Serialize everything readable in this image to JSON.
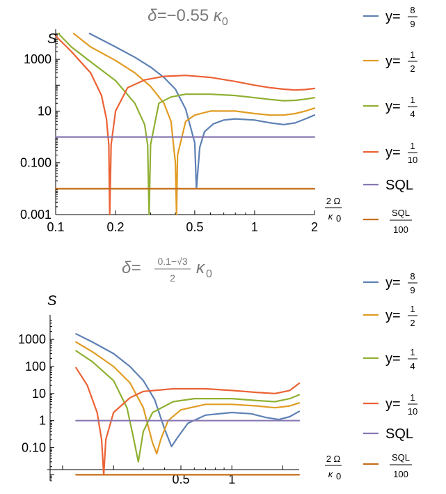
{
  "chart_data": [
    {
      "type": "line",
      "title": {
        "prefix": "δ=",
        "value": "−0.55",
        "unit": "κ",
        "sub": "0"
      },
      "ylabel": "S",
      "xlabel": {
        "num": "2 Ω",
        "den": "κ",
        "sub": "0"
      },
      "x_scale": "log",
      "y_scale": "log",
      "xlim": [
        0.1,
        2
      ],
      "ylim": [
        0.001,
        10000
      ],
      "x_ticks": [
        {
          "value": 0.1,
          "label": "0.1"
        },
        {
          "value": 0.2,
          "label": "0.2"
        },
        {
          "value": 0.5,
          "label": "0.5"
        },
        {
          "value": 1,
          "label": "1"
        },
        {
          "value": 2,
          "label": "2"
        }
      ],
      "y_ticks": [
        {
          "value": 0.001,
          "label": "0.001"
        },
        {
          "value": 0.1,
          "label": "0.100"
        },
        {
          "value": 10,
          "label": "10"
        },
        {
          "value": 1000,
          "label": "1000"
        }
      ],
      "series": [
        {
          "name": "y=8/9",
          "color": "#5E81B5",
          "points": [
            [
              0.148,
              10000
            ],
            [
              0.2,
              3000
            ],
            [
              0.25,
              1200
            ],
            [
              0.3,
              500
            ],
            [
              0.35,
              200
            ],
            [
              0.4,
              70
            ],
            [
              0.45,
              12
            ],
            [
              0.5,
              0.6
            ],
            [
              0.51,
              0.01
            ],
            [
              0.53,
              0.4
            ],
            [
              0.56,
              1.6
            ],
            [
              0.62,
              3.2
            ],
            [
              0.7,
              4.5
            ],
            [
              0.8,
              5
            ],
            [
              1.0,
              4.5
            ],
            [
              1.2,
              3.5
            ],
            [
              1.4,
              3
            ],
            [
              1.6,
              3.5
            ],
            [
              1.8,
              5
            ],
            [
              2.0,
              7
            ]
          ]
        },
        {
          "name": "y=1/2",
          "color": "#E19C24",
          "points": [
            [
              0.123,
              10000
            ],
            [
              0.15,
              3000
            ],
            [
              0.2,
              900
            ],
            [
              0.25,
              300
            ],
            [
              0.3,
              90
            ],
            [
              0.35,
              20
            ],
            [
              0.38,
              4
            ],
            [
              0.4,
              0.1
            ],
            [
              0.405,
              0.001
            ],
            [
              0.41,
              0.2
            ],
            [
              0.45,
              4
            ],
            [
              0.5,
              7
            ],
            [
              0.6,
              10
            ],
            [
              0.7,
              10
            ],
            [
              0.8,
              10
            ],
            [
              1.0,
              8
            ],
            [
              1.2,
              7
            ],
            [
              1.4,
              7
            ],
            [
              1.6,
              8
            ],
            [
              1.8,
              10
            ],
            [
              2.0,
              13
            ]
          ]
        },
        {
          "name": "y=1/4",
          "color": "#8FB032",
          "points": [
            [
              0.103,
              10000
            ],
            [
              0.12,
              3000
            ],
            [
              0.15,
              800
            ],
            [
              0.2,
              150
            ],
            [
              0.25,
              20
            ],
            [
              0.28,
              3
            ],
            [
              0.29,
              0.5
            ],
            [
              0.295,
              0.001
            ],
            [
              0.3,
              0.5
            ],
            [
              0.33,
              20
            ],
            [
              0.38,
              35
            ],
            [
              0.45,
              45
            ],
            [
              0.6,
              45
            ],
            [
              0.8,
              40
            ],
            [
              1.0,
              33
            ],
            [
              1.2,
              28
            ],
            [
              1.4,
              25
            ],
            [
              1.6,
              26
            ],
            [
              1.8,
              29
            ],
            [
              2.0,
              33
            ]
          ]
        },
        {
          "name": "y=1/10",
          "color": "#EB6235",
          "points": [
            [
              0.1,
              8000
            ],
            [
              0.12,
              2000
            ],
            [
              0.15,
              300
            ],
            [
              0.17,
              40
            ],
            [
              0.18,
              5
            ],
            [
              0.185,
              0.5
            ],
            [
              0.187,
              0.001
            ],
            [
              0.19,
              0.5
            ],
            [
              0.2,
              10
            ],
            [
              0.23,
              80
            ],
            [
              0.28,
              160
            ],
            [
              0.35,
              220
            ],
            [
              0.45,
              240
            ],
            [
              0.6,
              200
            ],
            [
              0.8,
              140
            ],
            [
              1.0,
              100
            ],
            [
              1.2,
              80
            ],
            [
              1.4,
              70
            ],
            [
              1.6,
              65
            ],
            [
              1.8,
              68
            ],
            [
              2.0,
              75
            ]
          ]
        },
        {
          "name": "SQL",
          "color": "#8778B3",
          "points": [
            [
              0.1,
              1
            ],
            [
              2.0,
              1
            ]
          ]
        },
        {
          "name": "SQL/100",
          "color": "#C56E1A",
          "points": [
            [
              0.1,
              0.01
            ],
            [
              2.0,
              0.01
            ]
          ]
        }
      ],
      "legend": [
        {
          "kind": "frac",
          "prefix": "y=",
          "num": "8",
          "den": "9",
          "color": "#5E81B5"
        },
        {
          "kind": "frac",
          "prefix": "y=",
          "num": "1",
          "den": "2",
          "color": "#E19C24"
        },
        {
          "kind": "frac",
          "prefix": "y=",
          "num": "1",
          "den": "4",
          "color": "#8FB032"
        },
        {
          "kind": "frac",
          "prefix": "y=",
          "num": "1",
          "den": "10",
          "color": "#EB6235"
        },
        {
          "kind": "text",
          "text": "SQL",
          "color": "#8778B3"
        },
        {
          "kind": "fraconly",
          "num": "SQL",
          "den": "100",
          "color": "#C56E1A"
        }
      ]
    },
    {
      "type": "line",
      "title": {
        "prefix": "δ=",
        "num": "0.1−√3",
        "den": "2",
        "unit": "κ",
        "sub": "0"
      },
      "ylabel": "S",
      "xlabel": {
        "num": "2 Ω",
        "den": "κ",
        "sub": "0"
      },
      "x_scale": "log",
      "y_scale": "log",
      "xlim": [
        0.1,
        2.5
      ],
      "ylim": [
        0.006,
        5000
      ],
      "x_ticks": [
        {
          "value": 0.5,
          "label": "0.5"
        },
        {
          "value": 1,
          "label": "1"
        }
      ],
      "y_ticks": [
        {
          "value": 0.1,
          "label": "0.10"
        },
        {
          "value": 1,
          "label": "1"
        },
        {
          "value": 10,
          "label": "10"
        },
        {
          "value": 100,
          "label": "100"
        },
        {
          "value": 1000,
          "label": "1000"
        }
      ],
      "series": [
        {
          "name": "y=8/9",
          "color": "#5E81B5",
          "points": [
            [
              0.12,
              1600
            ],
            [
              0.15,
              800
            ],
            [
              0.2,
              300
            ],
            [
              0.25,
              100
            ],
            [
              0.3,
              30
            ],
            [
              0.35,
              6
            ],
            [
              0.4,
              0.5
            ],
            [
              0.44,
              0.11
            ],
            [
              0.48,
              0.25
            ],
            [
              0.55,
              0.8
            ],
            [
              0.7,
              1.6
            ],
            [
              1.0,
              2
            ],
            [
              1.3,
              1.8
            ],
            [
              1.6,
              1.3
            ],
            [
              1.9,
              1.1
            ],
            [
              2.2,
              1.4
            ],
            [
              2.5,
              2.2
            ]
          ]
        },
        {
          "name": "y=1/2",
          "color": "#E19C24",
          "points": [
            [
              0.12,
              800
            ],
            [
              0.15,
              350
            ],
            [
              0.2,
              100
            ],
            [
              0.25,
              25
            ],
            [
              0.3,
              3
            ],
            [
              0.34,
              0.15
            ],
            [
              0.36,
              0.06
            ],
            [
              0.38,
              0.2
            ],
            [
              0.42,
              1
            ],
            [
              0.5,
              2.5
            ],
            [
              0.7,
              4
            ],
            [
              1.0,
              4
            ],
            [
              1.4,
              3.5
            ],
            [
              1.8,
              3
            ],
            [
              2.2,
              3.5
            ],
            [
              2.5,
              4.5
            ]
          ]
        },
        {
          "name": "y=1/4",
          "color": "#8FB032",
          "points": [
            [
              0.12,
              380
            ],
            [
              0.15,
              150
            ],
            [
              0.2,
              30
            ],
            [
              0.24,
              3
            ],
            [
              0.26,
              0.3
            ],
            [
              0.28,
              0.03
            ],
            [
              0.3,
              0.4
            ],
            [
              0.34,
              2
            ],
            [
              0.45,
              5
            ],
            [
              0.6,
              6.5
            ],
            [
              1.0,
              6.5
            ],
            [
              1.4,
              5.5
            ],
            [
              1.8,
              5
            ],
            [
              2.2,
              6.5
            ],
            [
              2.5,
              9
            ]
          ]
        },
        {
          "name": "y=1/10",
          "color": "#EB6235",
          "points": [
            [
              0.12,
              90
            ],
            [
              0.14,
              20
            ],
            [
              0.16,
              2
            ],
            [
              0.17,
              0.2
            ],
            [
              0.175,
              0.01
            ],
            [
              0.18,
              0.2
            ],
            [
              0.2,
              2
            ],
            [
              0.25,
              7
            ],
            [
              0.3,
              12
            ],
            [
              0.45,
              15
            ],
            [
              0.7,
              15
            ],
            [
              1.0,
              13
            ],
            [
              1.4,
              11
            ],
            [
              1.8,
              10
            ],
            [
              2.2,
              13
            ],
            [
              2.5,
              24
            ]
          ]
        },
        {
          "name": "SQL",
          "color": "#8778B3",
          "points": [
            [
              0.12,
              1
            ],
            [
              2.5,
              1
            ]
          ]
        },
        {
          "name": "SQL/100",
          "color": "#C56E1A",
          "points": [
            [
              0.12,
              0.01
            ],
            [
              2.5,
              0.01
            ]
          ]
        }
      ],
      "legend": [
        {
          "kind": "frac",
          "prefix": "y=",
          "num": "8",
          "den": "9",
          "color": "#5E81B5"
        },
        {
          "kind": "frac",
          "prefix": "y=",
          "num": "1",
          "den": "2",
          "color": "#E19C24"
        },
        {
          "kind": "frac",
          "prefix": "y=",
          "num": "1",
          "den": "4",
          "color": "#8FB032"
        },
        {
          "kind": "frac",
          "prefix": "y=",
          "num": "1",
          "den": "10",
          "color": "#EB6235"
        },
        {
          "kind": "text",
          "text": "SQL",
          "color": "#8778B3"
        },
        {
          "kind": "fraconly",
          "num": "SQL",
          "den": "100",
          "color": "#C56E1A"
        }
      ]
    }
  ]
}
